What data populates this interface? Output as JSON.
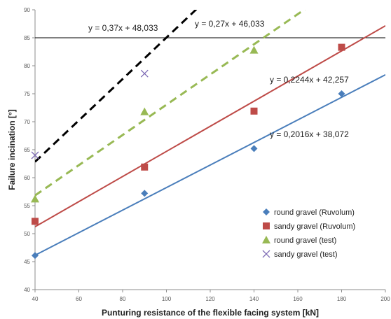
{
  "chart_data": {
    "type": "scatter",
    "xlabel": "Punturing resistance of the flexible facing system [kN]",
    "ylabel": "Failure incination [°]",
    "xlim": [
      40,
      200
    ],
    "ylim": [
      40,
      90
    ],
    "x_ticks": [
      "40",
      "60",
      "80",
      "100",
      "120",
      "140",
      "160",
      "180",
      "200"
    ],
    "y_ticks": [
      "40",
      "45",
      "50",
      "55",
      "60",
      "65",
      "70",
      "75",
      "80",
      "85",
      "90"
    ],
    "grid": false,
    "reference_line_y": 85,
    "legend_position": "bottom-right",
    "series": [
      {
        "name": "round gravel  (Ruvolum)",
        "marker": "diamond",
        "color": "#4a7ebb",
        "x": [
          40,
          90,
          140,
          180
        ],
        "y": [
          46.1,
          57.2,
          65.2,
          75.0
        ],
        "trendline": {
          "slope": 0.2016,
          "intercept": 38.072,
          "label": "y = 0,2016x + 38,072",
          "dash": "solid"
        }
      },
      {
        "name": "sandy gravel (Ruvolum)",
        "marker": "square",
        "color": "#be4b48",
        "x": [
          40,
          90,
          140,
          180
        ],
        "y": [
          52.2,
          61.9,
          71.9,
          83.3
        ],
        "trendline": {
          "slope": 0.2244,
          "intercept": 42.257,
          "label": "y = 0,2244x + 42,257",
          "dash": "solid"
        }
      },
      {
        "name": "round gravel  (test)",
        "marker": "triangle",
        "color": "#98b954",
        "x": [
          40,
          90,
          140
        ],
        "y": [
          56.2,
          71.8,
          82.8
        ],
        "trendline": {
          "slope": 0.27,
          "intercept": 46.033,
          "label": "y = 0,27x + 46,033",
          "dash": "dashed"
        }
      },
      {
        "name": "sandy gravel (test)",
        "marker": "x",
        "color": "#7e6bb5",
        "x": [
          40,
          90
        ],
        "y": [
          64.0,
          78.6
        ],
        "trendline": {
          "slope": 0.37,
          "intercept": 48.033,
          "label": "y = 0,37x + 48,033",
          "dash": "dashed",
          "color": "#000000"
        }
      }
    ]
  }
}
